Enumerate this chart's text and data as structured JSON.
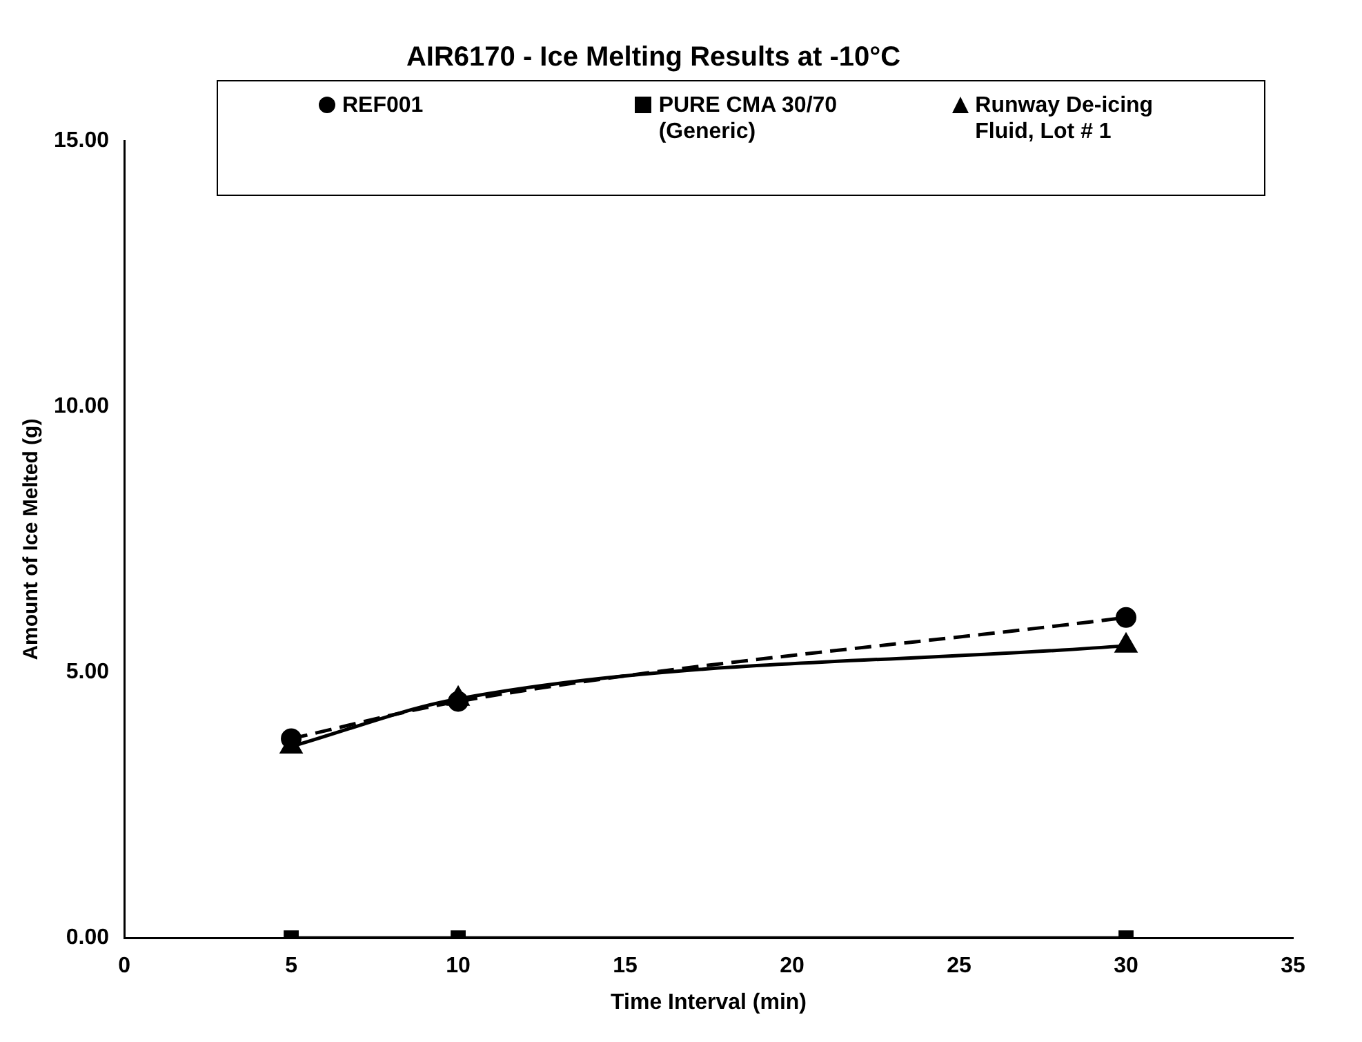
{
  "chart_data": {
    "type": "line",
    "title": "AIR6170 - Ice Melting Results at -10°C",
    "xlabel": "Time Interval (min)",
    "ylabel": "Amount of Ice Melted (g)",
    "x": [
      5,
      10,
      30
    ],
    "series": [
      {
        "name": "REF001",
        "color": "#000000",
        "marker": "circle",
        "line_style": "dashed",
        "values": [
          3.75,
          4.45,
          6.03
        ]
      },
      {
        "name": "PURE CMA 30/70 (Generic)",
        "color": "#000000",
        "marker": "square",
        "line_style": "solid",
        "values": [
          0,
          0,
          0
        ]
      },
      {
        "name": "Runway De-icing Fluid, Lot # 1",
        "color": "#000000",
        "marker": "triangle",
        "line_style": "solid",
        "values": [
          3.6,
          4.5,
          5.5
        ]
      }
    ],
    "xlim": [
      0,
      35
    ],
    "xticks": [
      0,
      5,
      10,
      15,
      20,
      25,
      30,
      35
    ],
    "ylim": [
      0,
      15
    ],
    "yticks": [
      {
        "value": 0,
        "label": "0.00"
      },
      {
        "value": 5,
        "label": "5.00"
      },
      {
        "value": 10,
        "label": "10.00"
      },
      {
        "value": 15,
        "label": "15.00"
      }
    ],
    "grid": false,
    "legend": "top"
  }
}
